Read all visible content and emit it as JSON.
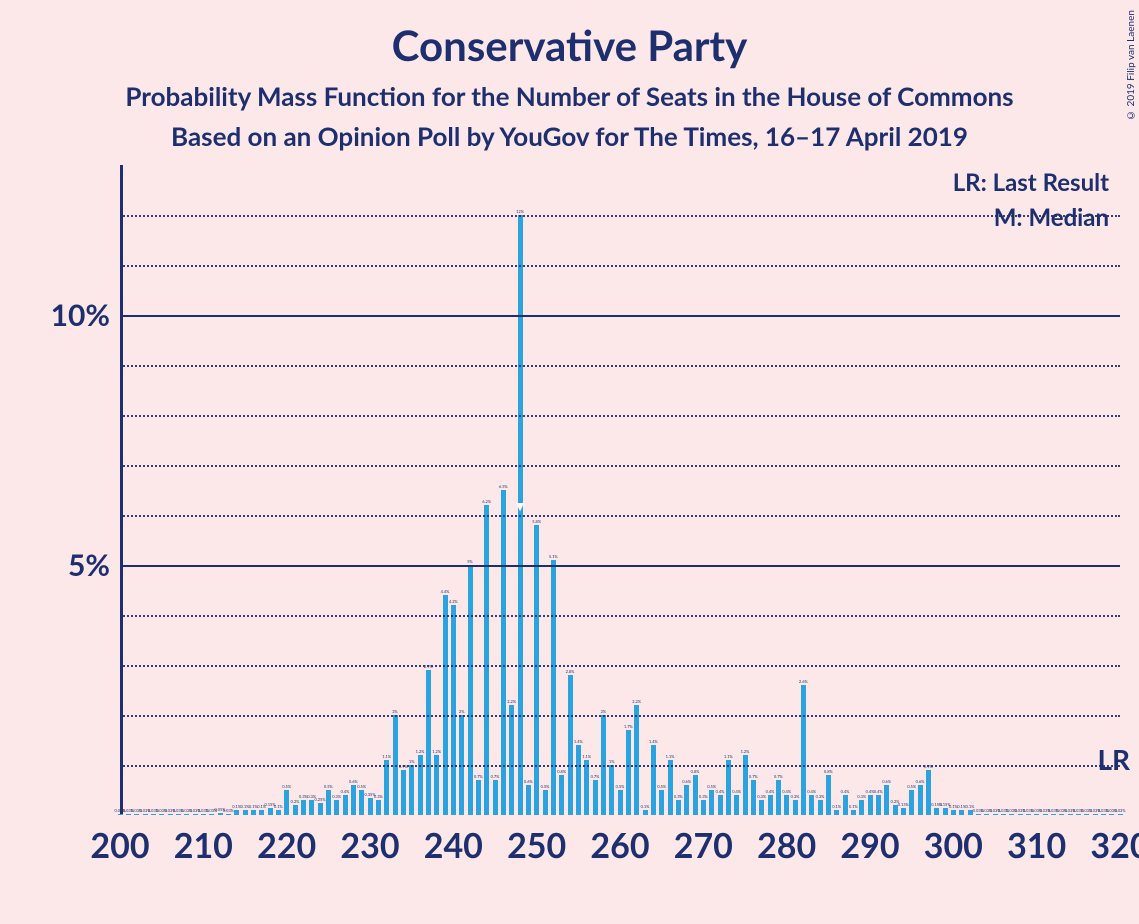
{
  "title": "Conservative Party",
  "subtitle1": "Probability Mass Function for the Number of Seats in the House of Commons",
  "subtitle2": "Based on an Opinion Poll by YouGov for The Times, 16–17 April 2019",
  "copyright": "© 2019 Filip van Laenen",
  "legend": {
    "lr": "LR: Last Result",
    "m": "M: Median"
  },
  "lr_label": "LR",
  "chart": {
    "type": "bar",
    "background_color": "#fce8e8",
    "bar_color": "#2ba3e0",
    "axis_color": "#1e2f6f",
    "grid_color": "#1e2f6f",
    "title_fontsize": 42,
    "subtitle_fontsize": 26,
    "ylabel_fontsize": 30,
    "xlabel_fontsize": 34,
    "x_min": 200,
    "x_max": 320,
    "xtick_step": 10,
    "xticks": [
      200,
      210,
      220,
      230,
      240,
      250,
      260,
      270,
      280,
      290,
      300,
      310,
      320
    ],
    "y_min": 0,
    "y_max": 13,
    "major_yticks": [
      5,
      10
    ],
    "minor_ytick_step": 1,
    "ylabels": {
      "5": "5%",
      "10": "10%"
    },
    "bar_width_ratio": 0.6,
    "median": 248,
    "last_result_y": 1.1,
    "data": [
      {
        "x": 200,
        "y": 0.03
      },
      {
        "x": 201,
        "y": 0.03
      },
      {
        "x": 202,
        "y": 0.03
      },
      {
        "x": 203,
        "y": 0.03
      },
      {
        "x": 204,
        "y": 0.03
      },
      {
        "x": 205,
        "y": 0.03
      },
      {
        "x": 206,
        "y": 0.03
      },
      {
        "x": 207,
        "y": 0.03
      },
      {
        "x": 208,
        "y": 0.03
      },
      {
        "x": 209,
        "y": 0.03
      },
      {
        "x": 210,
        "y": 0.03
      },
      {
        "x": 211,
        "y": 0.03
      },
      {
        "x": 212,
        "y": 0.05
      },
      {
        "x": 213,
        "y": 0.03
      },
      {
        "x": 214,
        "y": 0.1
      },
      {
        "x": 215,
        "y": 0.1
      },
      {
        "x": 216,
        "y": 0.1
      },
      {
        "x": 217,
        "y": 0.1
      },
      {
        "x": 218,
        "y": 0.15
      },
      {
        "x": 219,
        "y": 0.1
      },
      {
        "x": 220,
        "y": 0.5
      },
      {
        "x": 221,
        "y": 0.2
      },
      {
        "x": 222,
        "y": 0.3
      },
      {
        "x": 223,
        "y": 0.3
      },
      {
        "x": 224,
        "y": 0.25
      },
      {
        "x": 225,
        "y": 0.5
      },
      {
        "x": 226,
        "y": 0.3
      },
      {
        "x": 227,
        "y": 0.4
      },
      {
        "x": 228,
        "y": 0.6
      },
      {
        "x": 229,
        "y": 0.5
      },
      {
        "x": 230,
        "y": 0.35
      },
      {
        "x": 231,
        "y": 0.3
      },
      {
        "x": 232,
        "y": 1.1
      },
      {
        "x": 233,
        "y": 2.0
      },
      {
        "x": 234,
        "y": 0.9
      },
      {
        "x": 235,
        "y": 1.0
      },
      {
        "x": 236,
        "y": 1.2
      },
      {
        "x": 237,
        "y": 2.9
      },
      {
        "x": 238,
        "y": 1.2
      },
      {
        "x": 239,
        "y": 4.4
      },
      {
        "x": 240,
        "y": 4.2
      },
      {
        "x": 241,
        "y": 2.0
      },
      {
        "x": 242,
        "y": 5.0
      },
      {
        "x": 243,
        "y": 0.7
      },
      {
        "x": 244,
        "y": 6.2
      },
      {
        "x": 245,
        "y": 0.7
      },
      {
        "x": 246,
        "y": 6.5
      },
      {
        "x": 247,
        "y": 2.2
      },
      {
        "x": 248,
        "y": 12.0
      },
      {
        "x": 249,
        "y": 0.6
      },
      {
        "x": 250,
        "y": 5.8
      },
      {
        "x": 251,
        "y": 0.5
      },
      {
        "x": 252,
        "y": 5.1
      },
      {
        "x": 253,
        "y": 0.8
      },
      {
        "x": 254,
        "y": 2.8
      },
      {
        "x": 255,
        "y": 1.4
      },
      {
        "x": 256,
        "y": 1.1
      },
      {
        "x": 257,
        "y": 0.7
      },
      {
        "x": 258,
        "y": 2.0
      },
      {
        "x": 259,
        "y": 1.0
      },
      {
        "x": 260,
        "y": 0.5
      },
      {
        "x": 261,
        "y": 1.7
      },
      {
        "x": 262,
        "y": 2.2
      },
      {
        "x": 263,
        "y": 0.1
      },
      {
        "x": 264,
        "y": 1.4
      },
      {
        "x": 265,
        "y": 0.5
      },
      {
        "x": 266,
        "y": 1.1
      },
      {
        "x": 267,
        "y": 0.3
      },
      {
        "x": 268,
        "y": 0.6
      },
      {
        "x": 269,
        "y": 0.8
      },
      {
        "x": 270,
        "y": 0.3
      },
      {
        "x": 271,
        "y": 0.5
      },
      {
        "x": 272,
        "y": 0.4
      },
      {
        "x": 273,
        "y": 1.1
      },
      {
        "x": 274,
        "y": 0.4
      },
      {
        "x": 275,
        "y": 1.2
      },
      {
        "x": 276,
        "y": 0.7
      },
      {
        "x": 277,
        "y": 0.3
      },
      {
        "x": 278,
        "y": 0.4
      },
      {
        "x": 279,
        "y": 0.7
      },
      {
        "x": 280,
        "y": 0.4
      },
      {
        "x": 281,
        "y": 0.3
      },
      {
        "x": 282,
        "y": 2.6
      },
      {
        "x": 283,
        "y": 0.4
      },
      {
        "x": 284,
        "y": 0.3
      },
      {
        "x": 285,
        "y": 0.8
      },
      {
        "x": 286,
        "y": 0.1
      },
      {
        "x": 287,
        "y": 0.4
      },
      {
        "x": 288,
        "y": 0.1
      },
      {
        "x": 289,
        "y": 0.3
      },
      {
        "x": 290,
        "y": 0.4
      },
      {
        "x": 291,
        "y": 0.4
      },
      {
        "x": 292,
        "y": 0.6
      },
      {
        "x": 293,
        "y": 0.2
      },
      {
        "x": 294,
        "y": 0.15
      },
      {
        "x": 295,
        "y": 0.5
      },
      {
        "x": 296,
        "y": 0.6
      },
      {
        "x": 297,
        "y": 0.9
      },
      {
        "x": 298,
        "y": 0.15
      },
      {
        "x": 299,
        "y": 0.15
      },
      {
        "x": 300,
        "y": 0.1
      },
      {
        "x": 301,
        "y": 0.1
      },
      {
        "x": 302,
        "y": 0.1
      },
      {
        "x": 303,
        "y": 0.03
      },
      {
        "x": 304,
        "y": 0.03
      },
      {
        "x": 305,
        "y": 0.03
      },
      {
        "x": 306,
        "y": 0.03
      },
      {
        "x": 307,
        "y": 0.03
      },
      {
        "x": 308,
        "y": 0.03
      },
      {
        "x": 309,
        "y": 0.03
      },
      {
        "x": 310,
        "y": 0.03
      },
      {
        "x": 311,
        "y": 0.03
      },
      {
        "x": 312,
        "y": 0.03
      },
      {
        "x": 313,
        "y": 0.03
      },
      {
        "x": 314,
        "y": 0.03
      },
      {
        "x": 315,
        "y": 0.03
      },
      {
        "x": 316,
        "y": 0.03
      },
      {
        "x": 317,
        "y": 0.03
      },
      {
        "x": 318,
        "y": 0.03
      },
      {
        "x": 319,
        "y": 0.03
      },
      {
        "x": 320,
        "y": 0.03
      }
    ]
  }
}
